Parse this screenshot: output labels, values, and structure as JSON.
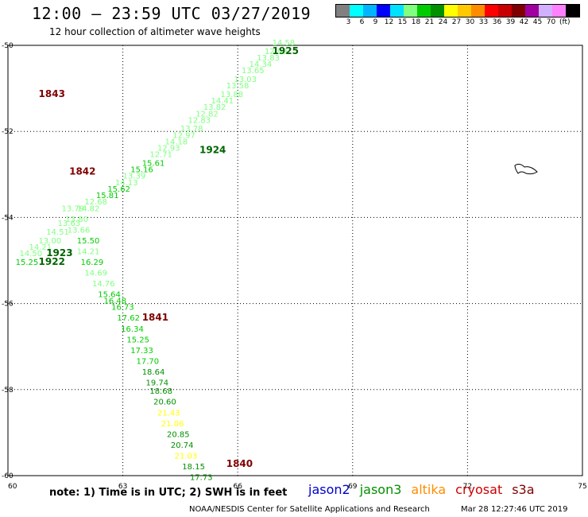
{
  "header": {
    "title": "12:00 — 23:59 UTC 03/27/2019",
    "subtitle": "12 hour collection of altimeter wave heights"
  },
  "legend": {
    "colors": [
      "#808080",
      "#00ffff",
      "#00b4ff",
      "#0000ff",
      "#00e0ff",
      "#80ff80",
      "#00cc00",
      "#009000",
      "#ffff00",
      "#ffc800",
      "#ff8c00",
      "#ff0000",
      "#c80000",
      "#800000",
      "#a000a0",
      "#d0b0ff",
      "#ff80ff",
      "#000000"
    ],
    "labels": [
      "3",
      "6",
      "9",
      "12",
      "15",
      "18",
      "21",
      "24",
      "27",
      "30",
      "33",
      "36",
      "39",
      "42",
      "45",
      "70"
    ],
    "unit": "(ft)"
  },
  "axes": {
    "x_ticks": [
      "60",
      "63",
      "66",
      "69",
      "72",
      "75"
    ],
    "y_ticks": [
      "-50",
      "-52",
      "-54",
      "-56",
      "-58",
      "-60"
    ]
  },
  "pass_labels": [
    {
      "text": "1925",
      "color": "#006400",
      "lon": 66.9,
      "lat": -50.2
    },
    {
      "text": "1843",
      "color": "#800000",
      "lon": 60.8,
      "lat": -51.2
    },
    {
      "text": "1924",
      "color": "#006400",
      "lon": 65.0,
      "lat": -52.5
    },
    {
      "text": "1842",
      "color": "#800000",
      "lon": 61.6,
      "lat": -53.0
    },
    {
      "text": "1923",
      "color": "#006400",
      "lon": 61.0,
      "lat": -54.9
    },
    {
      "text": "1922",
      "color": "#006400",
      "lon": 60.8,
      "lat": -55.1
    },
    {
      "text": "1841",
      "color": "#800000",
      "lon": 63.5,
      "lat": -56.4
    },
    {
      "text": "1840",
      "color": "#800000",
      "lon": 65.7,
      "lat": -59.8
    }
  ],
  "observations": [
    {
      "v": "14.58",
      "color": "#80ff80",
      "lon": 66.9,
      "lat": -50.0
    },
    {
      "v": "12.99",
      "color": "#80ff80",
      "lon": 66.7,
      "lat": -50.2
    },
    {
      "v": "13.83",
      "color": "#80ff80",
      "lon": 66.5,
      "lat": -50.35
    },
    {
      "v": "14.34",
      "color": "#80ff80",
      "lon": 66.3,
      "lat": -50.5
    },
    {
      "v": "13.65",
      "color": "#80ff80",
      "lon": 66.1,
      "lat": -50.65
    },
    {
      "v": "13.03",
      "color": "#80ff80",
      "lon": 65.9,
      "lat": -50.85
    },
    {
      "v": "13.58",
      "color": "#80ff80",
      "lon": 65.7,
      "lat": -51.0
    },
    {
      "v": "13.88",
      "color": "#80ff80",
      "lon": 65.55,
      "lat": -51.2
    },
    {
      "v": "14.41",
      "color": "#80ff80",
      "lon": 65.3,
      "lat": -51.35
    },
    {
      "v": "13.82",
      "color": "#80ff80",
      "lon": 65.1,
      "lat": -51.5
    },
    {
      "v": "12.82",
      "color": "#80ff80",
      "lon": 64.9,
      "lat": -51.65
    },
    {
      "v": "12.83",
      "color": "#80ff80",
      "lon": 64.7,
      "lat": -51.8
    },
    {
      "v": "13.78",
      "color": "#80ff80",
      "lon": 64.5,
      "lat": -52.0
    },
    {
      "v": "12.97",
      "color": "#80ff80",
      "lon": 64.3,
      "lat": -52.15
    },
    {
      "v": "14.18",
      "color": "#80ff80",
      "lon": 64.1,
      "lat": -52.3
    },
    {
      "v": "12.93",
      "color": "#80ff80",
      "lon": 63.9,
      "lat": -52.45
    },
    {
      "v": "12.71",
      "color": "#80ff80",
      "lon": 63.7,
      "lat": -52.6
    },
    {
      "v": "15.61",
      "color": "#00cc00",
      "lon": 63.5,
      "lat": -52.8
    },
    {
      "v": "15.16",
      "color": "#00cc00",
      "lon": 63.2,
      "lat": -52.95
    },
    {
      "v": "13.39",
      "color": "#80ff80",
      "lon": 63.0,
      "lat": -53.1
    },
    {
      "v": "14.13",
      "color": "#80ff80",
      "lon": 62.8,
      "lat": -53.25
    },
    {
      "v": "15.62",
      "color": "#00cc00",
      "lon": 62.6,
      "lat": -53.4
    },
    {
      "v": "15.81",
      "color": "#00cc00",
      "lon": 62.3,
      "lat": -53.55
    },
    {
      "v": "12.68",
      "color": "#80ff80",
      "lon": 62.0,
      "lat": -53.7
    },
    {
      "v": "14.82",
      "color": "#80ff80",
      "lon": 61.8,
      "lat": -53.85
    },
    {
      "v": "13.79",
      "color": "#80ff80",
      "lon": 61.4,
      "lat": -53.85
    },
    {
      "v": "13.80",
      "color": "#80ff80",
      "lon": 61.5,
      "lat": -54.1
    },
    {
      "v": "13.63",
      "color": "#80ff80",
      "lon": 61.3,
      "lat": -54.2
    },
    {
      "v": "13.66",
      "color": "#80ff80",
      "lon": 61.55,
      "lat": -54.35
    },
    {
      "v": "14.51",
      "color": "#80ff80",
      "lon": 61.0,
      "lat": -54.4
    },
    {
      "v": "13.00",
      "color": "#80ff80",
      "lon": 60.8,
      "lat": -54.6
    },
    {
      "v": "15.50",
      "color": "#00cc00",
      "lon": 61.8,
      "lat": -54.6
    },
    {
      "v": "14.21",
      "color": "#80ff80",
      "lon": 60.55,
      "lat": -54.75
    },
    {
      "v": "14.21",
      "color": "#80ff80",
      "lon": 61.8,
      "lat": -54.85
    },
    {
      "v": "14.50",
      "color": "#80ff80",
      "lon": 60.3,
      "lat": -54.9
    },
    {
      "v": "15.25",
      "color": "#00cc00",
      "lon": 60.2,
      "lat": -55.1
    },
    {
      "v": "16.29",
      "color": "#00cc00",
      "lon": 61.9,
      "lat": -55.1
    },
    {
      "v": "14.69",
      "color": "#80ff80",
      "lon": 62.0,
      "lat": -55.35
    },
    {
      "v": "14.76",
      "color": "#80ff80",
      "lon": 62.2,
      "lat": -55.6
    },
    {
      "v": "15.64",
      "color": "#00cc00",
      "lon": 62.35,
      "lat": -55.85
    },
    {
      "v": "16.48",
      "color": "#00cc00",
      "lon": 62.5,
      "lat": -56.0
    },
    {
      "v": "16.73",
      "color": "#00cc00",
      "lon": 62.7,
      "lat": -56.15
    },
    {
      "v": "17.62",
      "color": "#00cc00",
      "lon": 62.85,
      "lat": -56.4
    },
    {
      "v": "16.34",
      "color": "#00cc00",
      "lon": 62.95,
      "lat": -56.65
    },
    {
      "v": "15.25",
      "color": "#00cc00",
      "lon": 63.1,
      "lat": -56.9
    },
    {
      "v": "17.33",
      "color": "#00cc00",
      "lon": 63.2,
      "lat": -57.15
    },
    {
      "v": "17.70",
      "color": "#00cc00",
      "lon": 63.35,
      "lat": -57.4
    },
    {
      "v": "18.64",
      "color": "#009000",
      "lon": 63.5,
      "lat": -57.65
    },
    {
      "v": "19.74",
      "color": "#009000",
      "lon": 63.6,
      "lat": -57.9
    },
    {
      "v": "18.68",
      "color": "#009000",
      "lon": 63.7,
      "lat": -58.1
    },
    {
      "v": "20.60",
      "color": "#009000",
      "lon": 63.8,
      "lat": -58.35
    },
    {
      "v": "21.43",
      "color": "#ffff00",
      "lon": 63.9,
      "lat": -58.6
    },
    {
      "v": "21.06",
      "color": "#ffff00",
      "lon": 64.0,
      "lat": -58.85
    },
    {
      "v": "20.85",
      "color": "#009000",
      "lon": 64.15,
      "lat": -59.1
    },
    {
      "v": "20.74",
      "color": "#009000",
      "lon": 64.25,
      "lat": -59.35
    },
    {
      "v": "21.03",
      "color": "#ffff00",
      "lon": 64.35,
      "lat": -59.6
    },
    {
      "v": "18.15",
      "color": "#009000",
      "lon": 64.55,
      "lat": -59.85
    },
    {
      "v": "17.73",
      "color": "#009000",
      "lon": 64.75,
      "lat": -60.1
    }
  ],
  "footer": {
    "note": "note: 1) Time is in UTC; 2) SWH is in feet",
    "satellites": [
      {
        "name": "jason2",
        "color": "#0000cc"
      },
      {
        "name": "jason3",
        "color": "#009000"
      },
      {
        "name": "altika",
        "color": "#ff8c00"
      },
      {
        "name": "cryosat",
        "color": "#cc0000"
      },
      {
        "name": "s3a",
        "color": "#800000"
      }
    ],
    "credit": "NOAA/NESDIS Center for Satellite Applications and Research",
    "timestamp": "Mar 28 12:27:46 UTC 2019"
  }
}
